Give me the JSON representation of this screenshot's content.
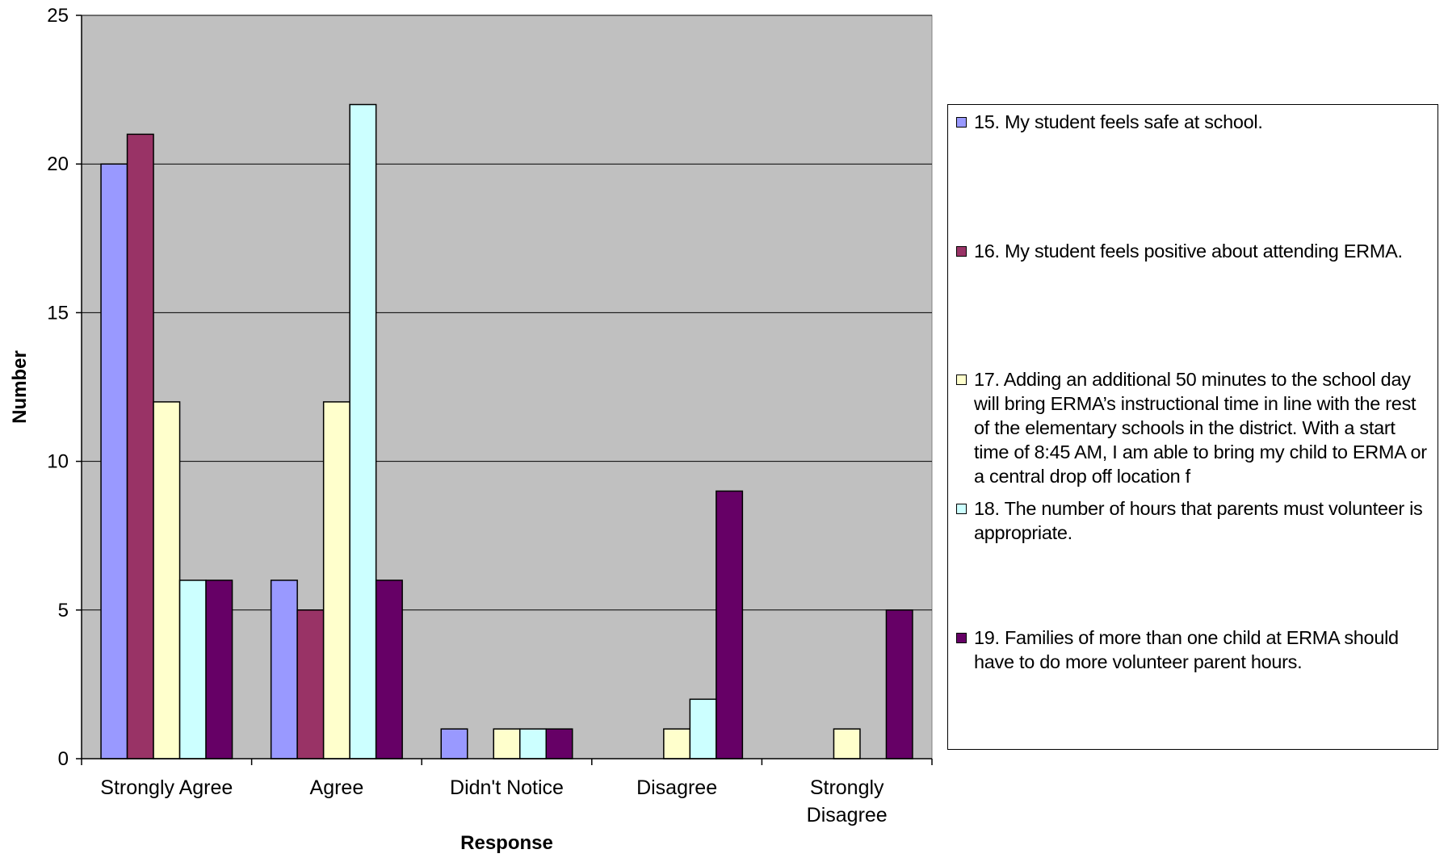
{
  "chart_data": {
    "type": "bar",
    "xlabel": "Response",
    "ylabel": "Number",
    "ylim": [
      0,
      25
    ],
    "yticks": [
      0,
      5,
      10,
      15,
      20,
      25
    ],
    "grid": true,
    "legend_position": "right",
    "categories": [
      "Strongly Agree",
      "Agree",
      "Didn't Notice",
      "Disagree",
      "Strongly Disagree"
    ],
    "category_lines": [
      [
        "Strongly Agree"
      ],
      [
        "Agree"
      ],
      [
        "Didn't Notice"
      ],
      [
        "Disagree"
      ],
      [
        "Strongly",
        "Disagree"
      ]
    ],
    "series": [
      {
        "name": "15. My student feels safe at school.",
        "color": "#9999ff",
        "values": [
          20,
          6,
          1,
          0,
          0
        ]
      },
      {
        "name": "16. My student feels positive about attending ERMA.",
        "color": "#993366",
        "values": [
          21,
          5,
          0,
          0,
          0
        ]
      },
      {
        "name": "17. Adding an additional 50 minutes to the school day will bring ERMA’s instructional time in line with the rest of the elementary schools in the district. With a start time of 8:45 AM, I am able to bring my child to ERMA or a central drop off location f",
        "color": "#ffffcc",
        "values": [
          12,
          12,
          1,
          1,
          1
        ]
      },
      {
        "name": "18. The number of hours that parents must volunteer is appropriate.",
        "color": "#ccffff",
        "values": [
          6,
          22,
          1,
          2,
          0
        ]
      },
      {
        "name": "19. Families of more than one child at ERMA should have to do more volunteer parent hours.",
        "color": "#660066",
        "values": [
          6,
          6,
          1,
          9,
          5
        ]
      }
    ],
    "plot_background": "#c0c0c0"
  }
}
